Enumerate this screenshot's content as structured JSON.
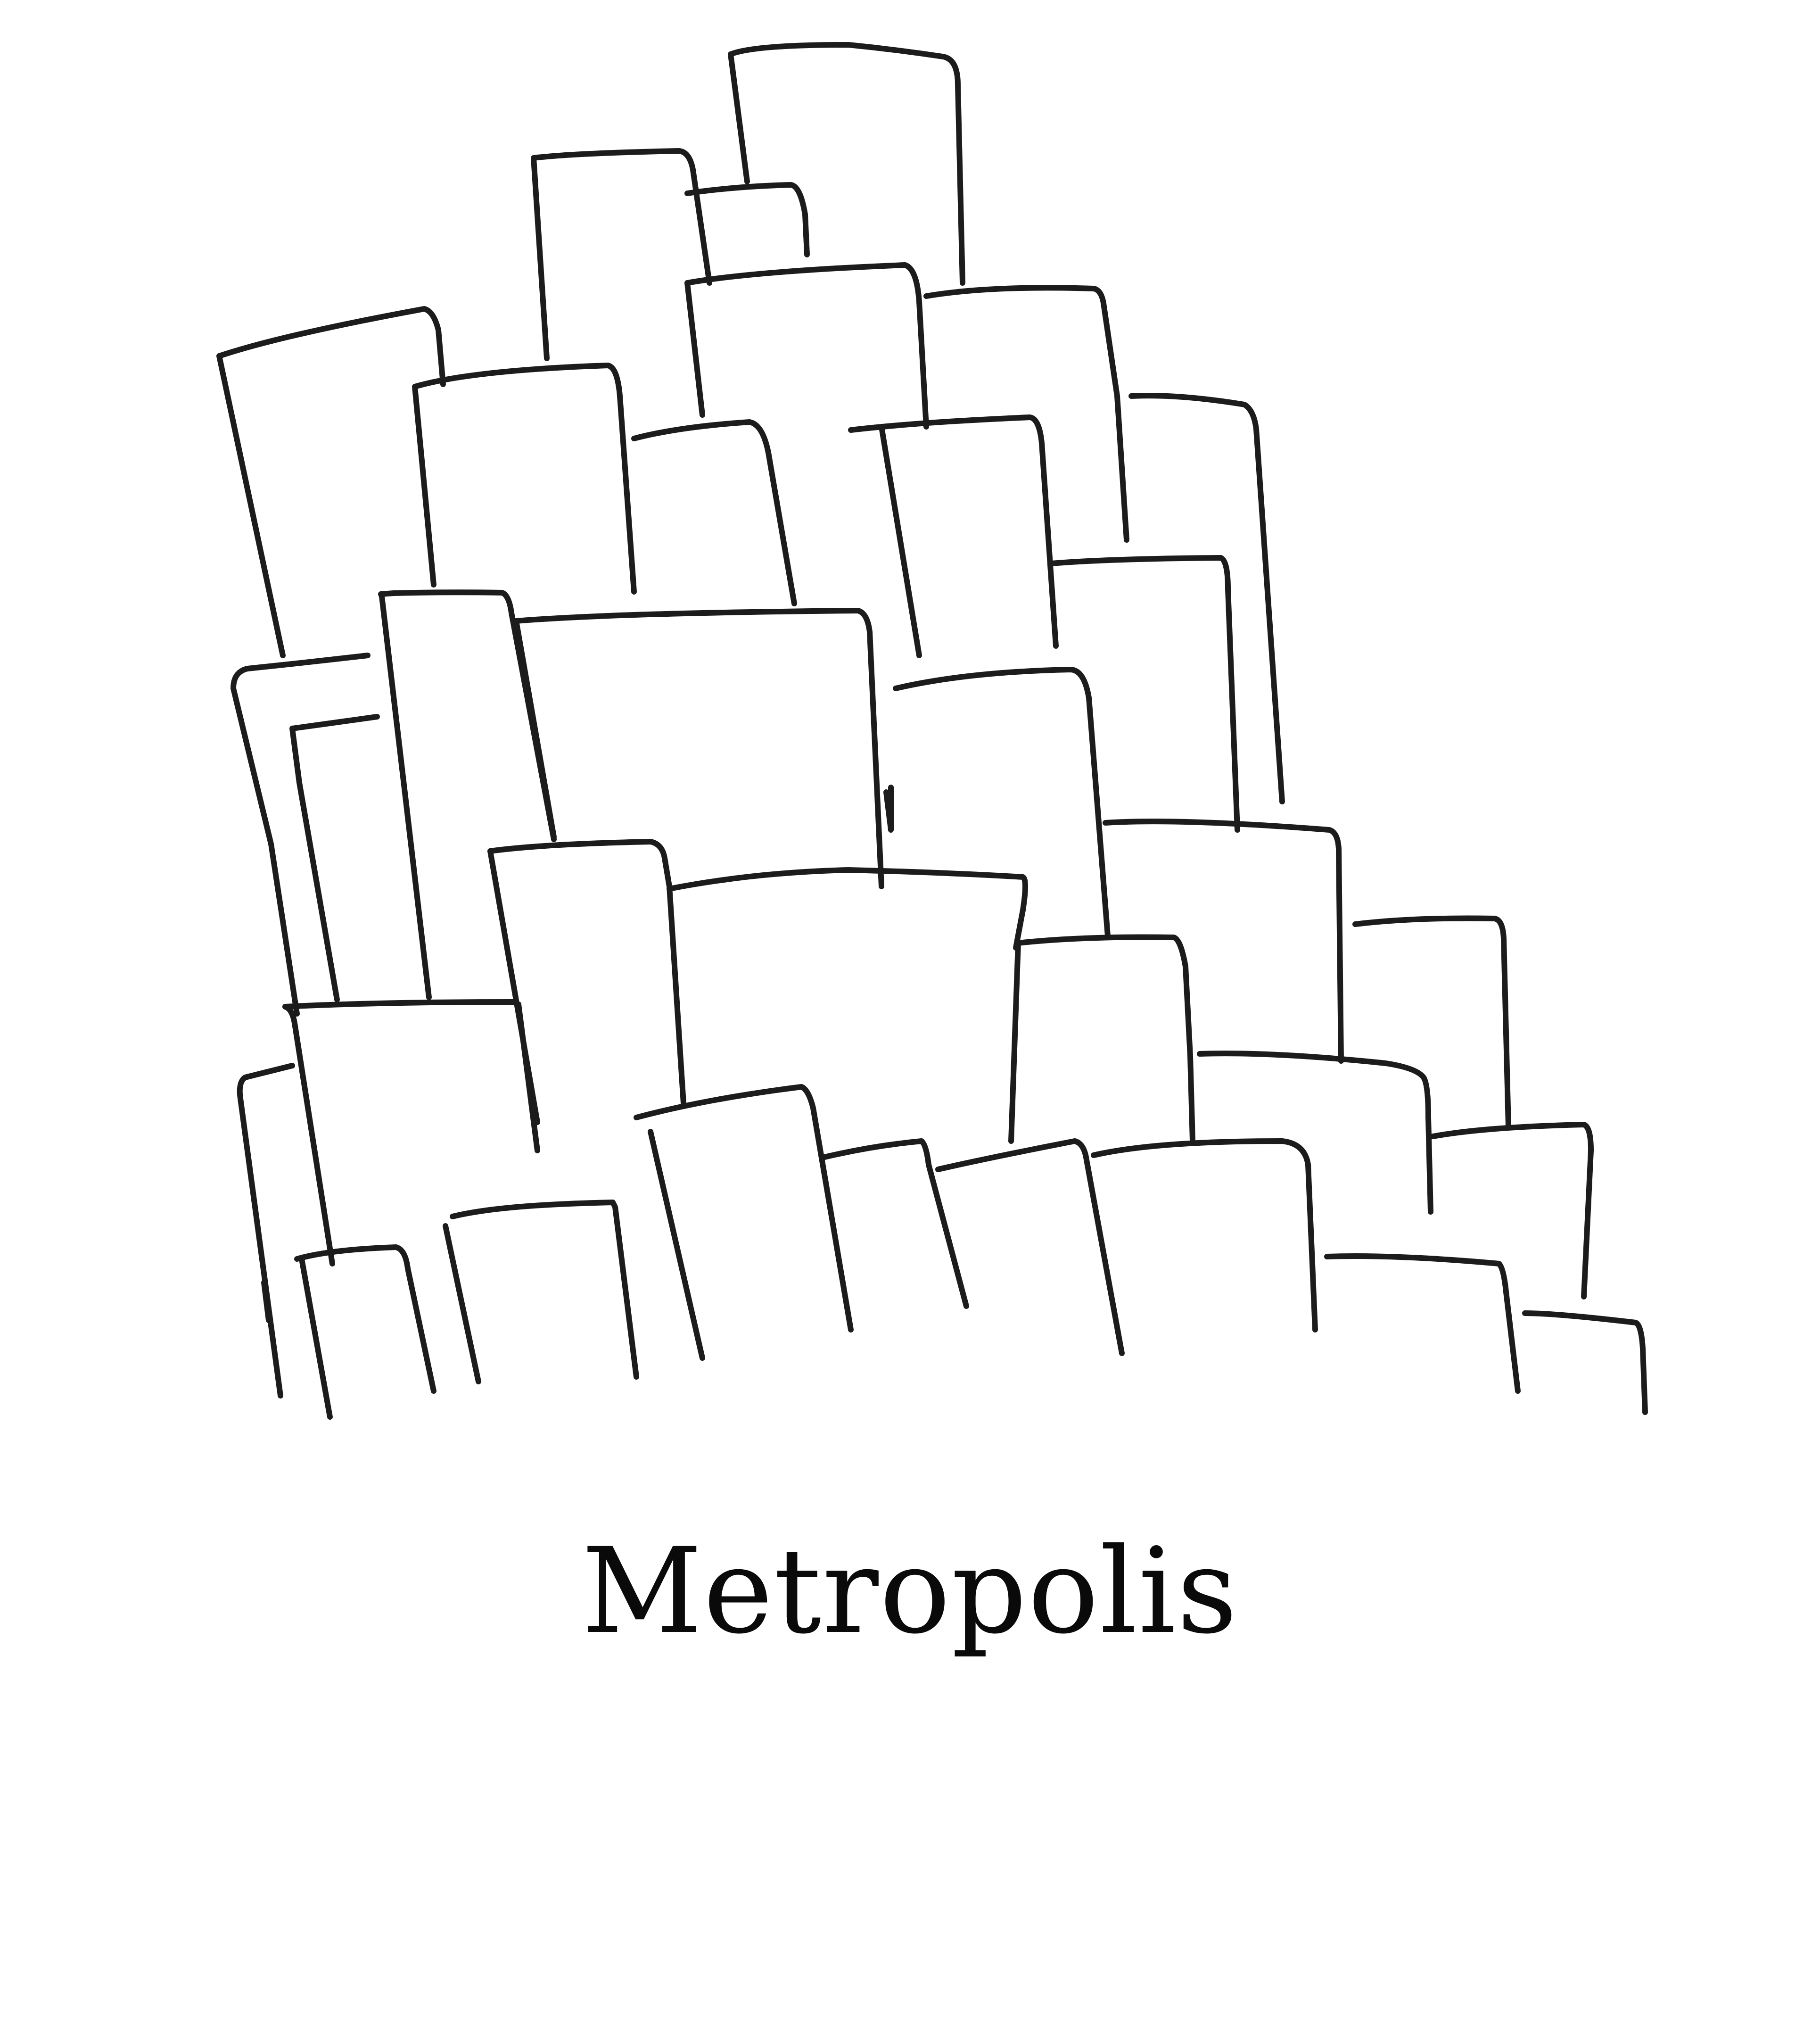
{
  "title": "Metropolis",
  "colors": {
    "background": "#ffffff",
    "ink": "#1c1c1c",
    "text": "#0a0a0a"
  }
}
